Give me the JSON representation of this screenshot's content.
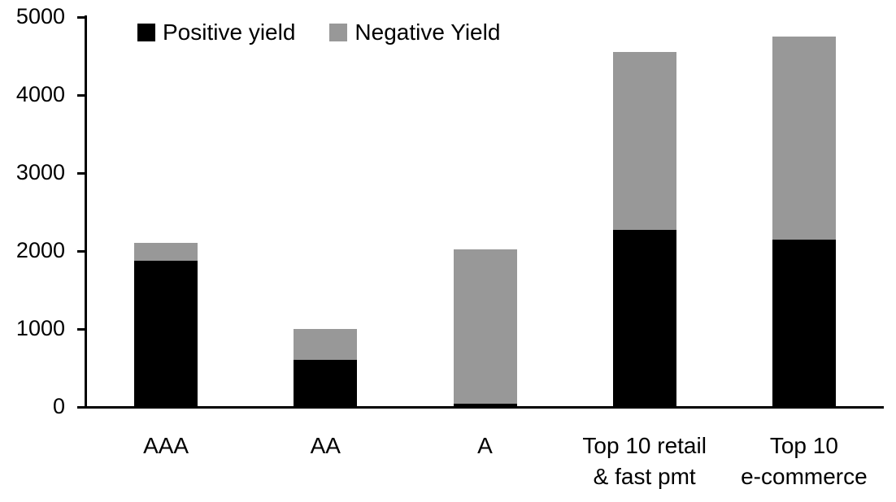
{
  "chart_data": {
    "type": "bar",
    "subtype": "stacked",
    "categories": [
      "AAA",
      "AA",
      "A",
      "Top 10 retail\n& fast pmt",
      "Top 10\ne-commerce"
    ],
    "series": [
      {
        "name": "Positive yield",
        "color": "#000000",
        "values": [
          1870,
          600,
          40,
          2270,
          2150
        ]
      },
      {
        "name": "Negative Yield",
        "color": "#989898",
        "values": [
          230,
          400,
          1980,
          2280,
          2600
        ]
      }
    ],
    "totals": [
      2100,
      1000,
      2020,
      4550,
      4750
    ],
    "ylim": [
      0,
      5000
    ],
    "yticks": [
      0,
      1000,
      2000,
      3000,
      4000,
      5000
    ],
    "grid": false,
    "legend_position": "top",
    "axis_color": "#000000",
    "background_color": "#ffffff"
  }
}
